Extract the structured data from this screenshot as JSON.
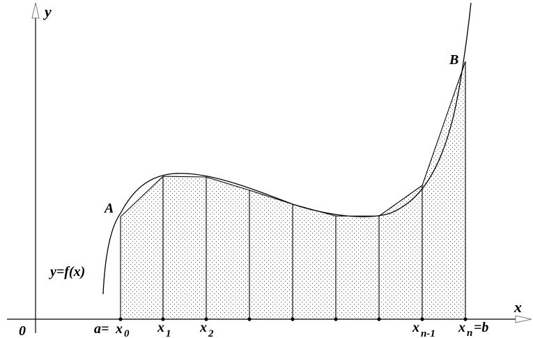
{
  "axes": {
    "origin": "0",
    "x_axis": "x",
    "y_axis": "y"
  },
  "curve": {
    "label": "y=f(x)"
  },
  "points": {
    "A": "A",
    "B": "B"
  },
  "ticks": {
    "a_eq": "a=",
    "x0_base": "x",
    "x0_sub": "0",
    "x1_base": "x",
    "x1_sub": "1",
    "x2_base": "x",
    "x2_sub": "2",
    "xn1_base": "x",
    "xn1_sub": "n-1",
    "xn_base": "x",
    "xn_sub": "n",
    "b_eq": "=b"
  },
  "colors": {
    "ink": "#000000",
    "axis_gray": "#7a7a7a",
    "dots": "#555555"
  }
}
